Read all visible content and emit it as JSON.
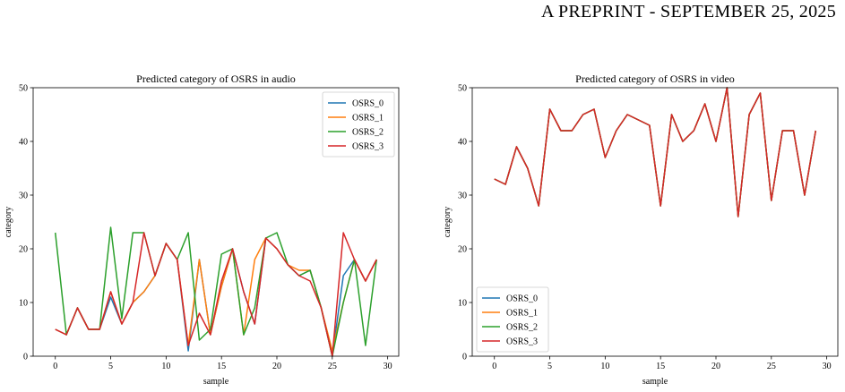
{
  "page": {
    "header": "A PREPRINT - SEPTEMBER 25, 2025"
  },
  "chart_data": [
    {
      "type": "line",
      "title": "Predicted category of OSRS in audio",
      "xlabel": "sample",
      "ylabel": "category",
      "xlim": [
        -2,
        31
      ],
      "ylim": [
        0,
        50
      ],
      "xticks": [
        0,
        5,
        10,
        15,
        20,
        25,
        30
      ],
      "yticks": [
        0,
        10,
        20,
        30,
        40,
        50
      ],
      "legend_position": "top-right",
      "grid": false,
      "x": [
        0,
        1,
        2,
        3,
        4,
        5,
        6,
        7,
        8,
        9,
        10,
        11,
        12,
        13,
        14,
        15,
        16,
        17,
        18,
        19,
        20,
        21,
        22,
        23,
        24,
        25,
        26,
        27,
        28,
        29
      ],
      "series": [
        {
          "name": "OSRS_0",
          "color": "#1f77b4",
          "values": [
            5,
            4,
            9,
            5,
            5,
            11,
            6,
            10,
            12,
            15,
            21,
            18,
            1,
            18,
            4,
            13,
            20,
            12,
            6,
            22,
            20,
            17,
            15,
            16,
            9,
            0,
            15,
            18,
            14,
            18
          ]
        },
        {
          "name": "OSRS_1",
          "color": "#ff7f0e",
          "values": [
            5,
            4,
            9,
            5,
            5,
            12,
            6,
            10,
            12,
            15,
            21,
            18,
            2,
            18,
            4,
            13,
            20,
            4,
            18,
            22,
            20,
            17,
            16,
            16,
            9,
            1,
            10,
            18,
            14,
            18
          ]
        },
        {
          "name": "OSRS_2",
          "color": "#2ca02c",
          "values": [
            23,
            4,
            9,
            5,
            5,
            24,
            7,
            23,
            23,
            15,
            21,
            18,
            23,
            3,
            5,
            19,
            20,
            4,
            9,
            22,
            23,
            17,
            15,
            16,
            9,
            0,
            10,
            18,
            2,
            18
          ]
        },
        {
          "name": "OSRS_3",
          "color": "#d62728",
          "values": [
            5,
            4,
            9,
            5,
            5,
            12,
            6,
            10,
            23,
            15,
            21,
            18,
            2,
            8,
            4,
            14,
            20,
            12,
            6,
            22,
            20,
            17,
            15,
            14,
            9,
            0,
            23,
            18,
            14,
            18
          ]
        }
      ]
    },
    {
      "type": "line",
      "title": "Predicted category of OSRS in video",
      "xlabel": "sample",
      "ylabel": "category",
      "xlim": [
        -2,
        31
      ],
      "ylim": [
        0,
        50
      ],
      "xticks": [
        0,
        5,
        10,
        15,
        20,
        25,
        30
      ],
      "yticks": [
        0,
        10,
        20,
        30,
        40,
        50
      ],
      "legend_position": "bottom-left",
      "grid": false,
      "x": [
        0,
        1,
        2,
        3,
        4,
        5,
        6,
        7,
        8,
        9,
        10,
        11,
        12,
        13,
        14,
        15,
        16,
        17,
        18,
        19,
        20,
        21,
        22,
        23,
        24,
        25,
        26,
        27,
        28,
        29
      ],
      "series": [
        {
          "name": "OSRS_0",
          "color": "#1f77b4",
          "values": [
            33,
            32,
            39,
            35,
            28,
            46,
            42,
            42,
            45,
            46,
            37,
            42,
            45,
            44,
            43,
            28,
            45,
            40,
            42,
            47,
            40,
            50,
            26,
            45,
            49,
            29,
            42,
            42,
            30,
            42
          ]
        },
        {
          "name": "OSRS_1",
          "color": "#ff7f0e",
          "values": [
            33,
            32,
            39,
            35,
            28,
            46,
            42,
            42,
            45,
            46,
            37,
            42,
            45,
            44,
            43,
            28,
            45,
            40,
            42,
            47,
            40,
            50,
            26,
            45,
            49,
            29,
            42,
            42,
            30,
            42
          ]
        },
        {
          "name": "OSRS_2",
          "color": "#2ca02c",
          "values": [
            33,
            32,
            39,
            35,
            28,
            46,
            42,
            42,
            45,
            46,
            37,
            42,
            45,
            44,
            43,
            28,
            45,
            40,
            42,
            47,
            40,
            50,
            26,
            45,
            49,
            29,
            42,
            42,
            30,
            42
          ]
        },
        {
          "name": "OSRS_3",
          "color": "#d62728",
          "values": [
            33,
            32,
            39,
            35,
            28,
            46,
            42,
            42,
            45,
            46,
            37,
            42,
            45,
            44,
            43,
            28,
            45,
            40,
            42,
            47,
            40,
            50,
            26,
            45,
            49,
            29,
            42,
            42,
            30,
            42
          ]
        }
      ]
    }
  ]
}
